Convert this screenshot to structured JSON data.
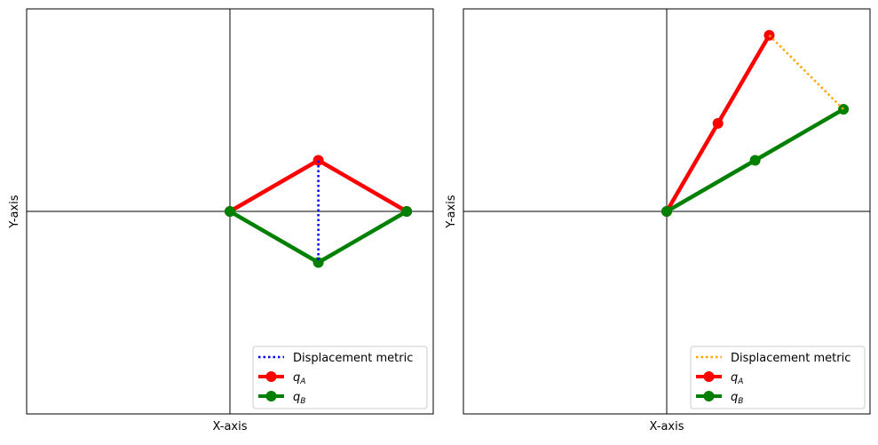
{
  "chart_data": [
    {
      "type": "line",
      "xlabel": "X-axis",
      "ylabel": "Y-axis",
      "xlim": [
        -1.15,
        1.15
      ],
      "ylim": [
        -1.15,
        1.15
      ],
      "ticks": "none",
      "crosshair": true,
      "legend_position": "lower-right",
      "series": [
        {
          "name": "Displacement metric",
          "style": "dotted",
          "color": "#0000ff",
          "x": [
            0.5,
            0.5
          ],
          "y": [
            0.29,
            -0.29
          ]
        },
        {
          "name_base": "q",
          "name_sub": "A",
          "style": "solid-markers",
          "color": "#ff0000",
          "x": [
            0,
            0.5,
            1.0
          ],
          "y": [
            0,
            0.29,
            0
          ]
        },
        {
          "name_base": "q",
          "name_sub": "B",
          "style": "solid-markers",
          "color": "#008000",
          "x": [
            0,
            0.5,
            1.0
          ],
          "y": [
            0,
            -0.29,
            0
          ]
        }
      ]
    },
    {
      "type": "line",
      "xlabel": "X-axis",
      "ylabel": "Y-axis",
      "xlim": [
        -1.15,
        1.15
      ],
      "ylim": [
        -1.15,
        1.15
      ],
      "ticks": "none",
      "crosshair": true,
      "legend_position": "lower-right",
      "series": [
        {
          "name": "Displacement metric",
          "style": "dotted",
          "color": "#ffa500",
          "x": [
            0.58,
            1.0
          ],
          "y": [
            1.0,
            0.58
          ]
        },
        {
          "name_base": "q",
          "name_sub": "A",
          "style": "solid-markers",
          "color": "#ff0000",
          "x": [
            0,
            0.29,
            0.58
          ],
          "y": [
            0,
            0.5,
            1.0
          ]
        },
        {
          "name_base": "q",
          "name_sub": "B",
          "style": "solid-markers",
          "color": "#008000",
          "x": [
            0,
            0.5,
            1.0
          ],
          "y": [
            0,
            0.29,
            0.58
          ]
        }
      ]
    }
  ]
}
